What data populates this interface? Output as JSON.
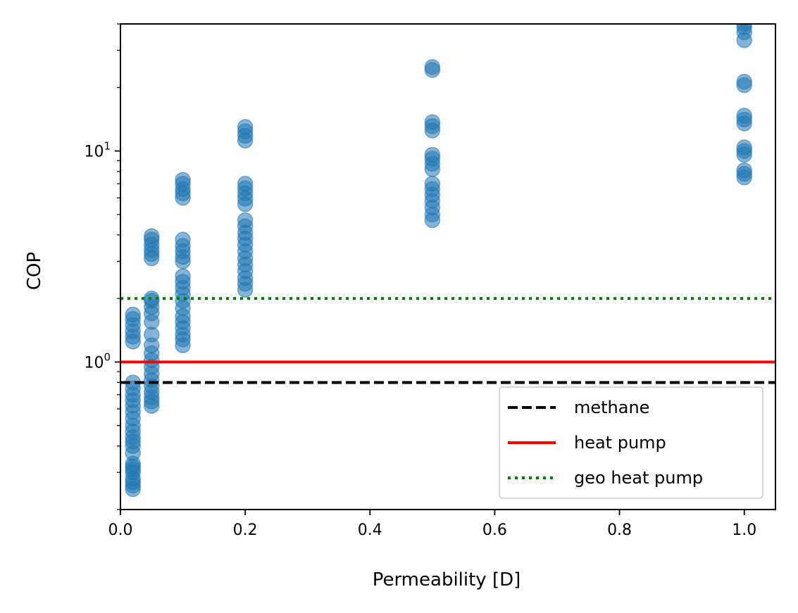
{
  "chart_data": {
    "type": "scatter",
    "xlabel": "Permeability [D]",
    "ylabel": "COP",
    "xlim": [
      0.0,
      1.05
    ],
    "ylim": [
      0.2,
      40
    ],
    "yscale": "log",
    "grid": false,
    "legend_position": "bottom-right",
    "x_ticks": [
      {
        "value": 0.0,
        "label": "0.0"
      },
      {
        "value": 0.2,
        "label": "0.2"
      },
      {
        "value": 0.4,
        "label": "0.4"
      },
      {
        "value": 0.6,
        "label": "0.6"
      },
      {
        "value": 0.8,
        "label": "0.8"
      },
      {
        "value": 1.0,
        "label": "1.0"
      }
    ],
    "y_ticks": [
      {
        "value": 1,
        "base": "10",
        "exp": "0"
      },
      {
        "value": 10,
        "base": "10",
        "exp": "1"
      }
    ],
    "series": [
      {
        "type": "scatter",
        "color": "#1f77b4",
        "points": [
          [
            0.02,
            0.25
          ],
          [
            0.02,
            0.26
          ],
          [
            0.02,
            0.27
          ],
          [
            0.02,
            0.28
          ],
          [
            0.02,
            0.3
          ],
          [
            0.02,
            0.31
          ],
          [
            0.02,
            0.32
          ],
          [
            0.02,
            0.33
          ],
          [
            0.02,
            0.37
          ],
          [
            0.02,
            0.4
          ],
          [
            0.02,
            0.42
          ],
          [
            0.02,
            0.44
          ],
          [
            0.02,
            0.47
          ],
          [
            0.02,
            0.5
          ],
          [
            0.02,
            0.54
          ],
          [
            0.02,
            0.58
          ],
          [
            0.02,
            0.62
          ],
          [
            0.02,
            0.66
          ],
          [
            0.02,
            0.7
          ],
          [
            0.02,
            0.75
          ],
          [
            0.02,
            0.8
          ],
          [
            0.02,
            1.25
          ],
          [
            0.02,
            1.32
          ],
          [
            0.02,
            1.4
          ],
          [
            0.02,
            1.5
          ],
          [
            0.02,
            1.6
          ],
          [
            0.02,
            1.68
          ],
          [
            0.05,
            0.62
          ],
          [
            0.05,
            0.65
          ],
          [
            0.05,
            0.68
          ],
          [
            0.05,
            0.72
          ],
          [
            0.05,
            0.77
          ],
          [
            0.05,
            0.82
          ],
          [
            0.05,
            0.88
          ],
          [
            0.05,
            0.95
          ],
          [
            0.05,
            1.02
          ],
          [
            0.05,
            1.1
          ],
          [
            0.05,
            1.2
          ],
          [
            0.05,
            1.35
          ],
          [
            0.05,
            1.55
          ],
          [
            0.05,
            1.7
          ],
          [
            0.05,
            1.82
          ],
          [
            0.05,
            1.95
          ],
          [
            0.05,
            2.0
          ],
          [
            0.05,
            3.1
          ],
          [
            0.05,
            3.25
          ],
          [
            0.05,
            3.4
          ],
          [
            0.05,
            3.6
          ],
          [
            0.05,
            3.8
          ],
          [
            0.05,
            3.95
          ],
          [
            0.1,
            1.2
          ],
          [
            0.1,
            1.28
          ],
          [
            0.1,
            1.35
          ],
          [
            0.1,
            1.45
          ],
          [
            0.1,
            1.55
          ],
          [
            0.1,
            1.65
          ],
          [
            0.1,
            1.8
          ],
          [
            0.1,
            1.95
          ],
          [
            0.1,
            2.1
          ],
          [
            0.1,
            2.25
          ],
          [
            0.1,
            2.4
          ],
          [
            0.1,
            2.55
          ],
          [
            0.1,
            3.0
          ],
          [
            0.1,
            3.15
          ],
          [
            0.1,
            3.35
          ],
          [
            0.1,
            3.55
          ],
          [
            0.1,
            3.8
          ],
          [
            0.1,
            6.0
          ],
          [
            0.1,
            6.3
          ],
          [
            0.1,
            6.6
          ],
          [
            0.1,
            7.0
          ],
          [
            0.1,
            7.3
          ],
          [
            0.2,
            2.2
          ],
          [
            0.2,
            2.35
          ],
          [
            0.2,
            2.5
          ],
          [
            0.2,
            2.7
          ],
          [
            0.2,
            2.9
          ],
          [
            0.2,
            3.1
          ],
          [
            0.2,
            3.35
          ],
          [
            0.2,
            3.6
          ],
          [
            0.2,
            3.85
          ],
          [
            0.2,
            4.1
          ],
          [
            0.2,
            4.4
          ],
          [
            0.2,
            4.7
          ],
          [
            0.2,
            5.6
          ],
          [
            0.2,
            5.95
          ],
          [
            0.2,
            6.3
          ],
          [
            0.2,
            6.65
          ],
          [
            0.2,
            7.0
          ],
          [
            0.2,
            11.2
          ],
          [
            0.2,
            11.8
          ],
          [
            0.2,
            12.4
          ],
          [
            0.2,
            13.0
          ],
          [
            0.5,
            4.7
          ],
          [
            0.5,
            5.0
          ],
          [
            0.5,
            5.4
          ],
          [
            0.5,
            5.8
          ],
          [
            0.5,
            6.2
          ],
          [
            0.5,
            6.6
          ],
          [
            0.5,
            7.0
          ],
          [
            0.5,
            8.2
          ],
          [
            0.5,
            8.7
          ],
          [
            0.5,
            9.2
          ],
          [
            0.5,
            9.6
          ],
          [
            0.5,
            12.5
          ],
          [
            0.5,
            13.1
          ],
          [
            0.5,
            13.7
          ],
          [
            0.5,
            24.2
          ],
          [
            0.5,
            25.0
          ],
          [
            1.0,
            7.5
          ],
          [
            1.0,
            7.8
          ],
          [
            1.0,
            8.1
          ],
          [
            1.0,
            9.6
          ],
          [
            1.0,
            10.0
          ],
          [
            1.0,
            10.4
          ],
          [
            1.0,
            13.5
          ],
          [
            1.0,
            14.1
          ],
          [
            1.0,
            14.7
          ],
          [
            1.0,
            20.5
          ],
          [
            1.0,
            21.3
          ],
          [
            1.0,
            33.5
          ],
          [
            1.0,
            36.5
          ],
          [
            1.0,
            38.5
          ],
          [
            1.0,
            40.0
          ]
        ]
      }
    ],
    "hlines": [
      {
        "name": "methane",
        "y": 0.8,
        "color": "#000000",
        "style": "dashed"
      },
      {
        "name": "heat pump",
        "y": 1.0,
        "color": "#ff0000",
        "style": "solid"
      },
      {
        "name": "geo heat pump",
        "y": 2.0,
        "color": "#008000",
        "style": "dotted"
      }
    ]
  }
}
